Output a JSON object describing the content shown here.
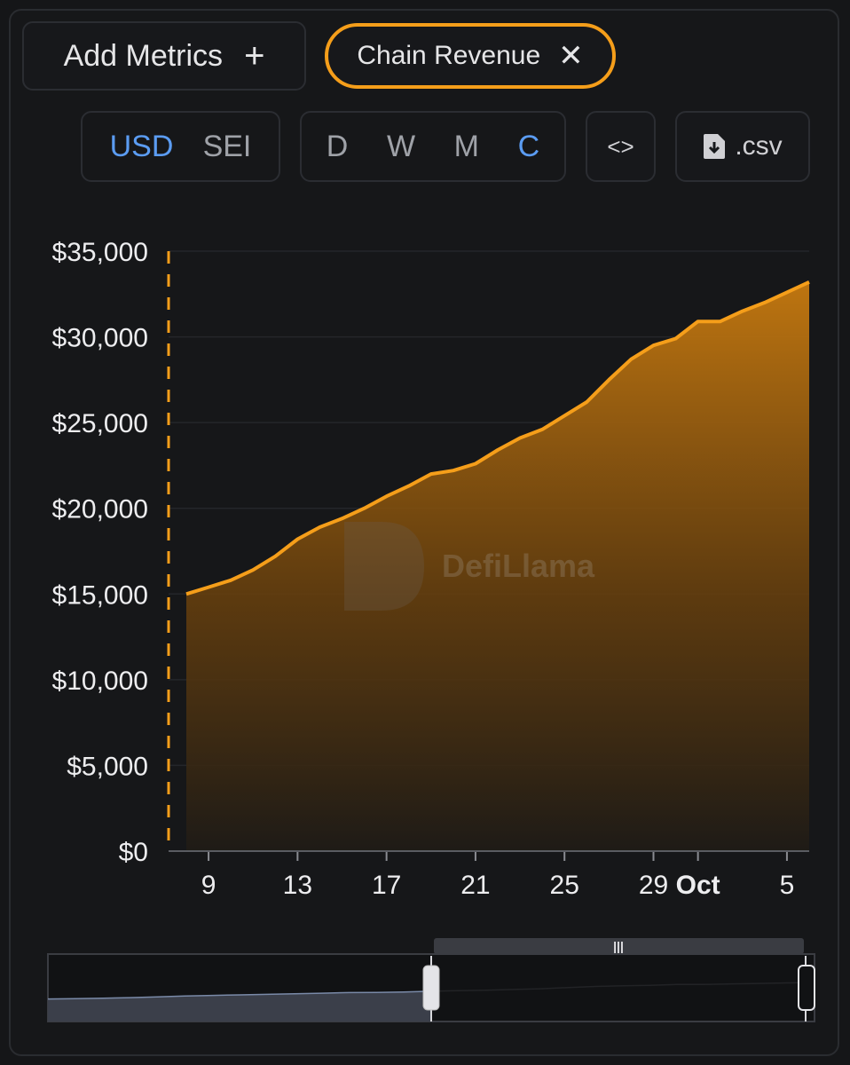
{
  "controls": {
    "add_metrics_label": "Add Metrics",
    "add_icon": "plus-icon",
    "chain_pill_label": "Chain Revenue",
    "remove_icon": "close-icon",
    "currency_options": [
      "USD",
      "SEI"
    ],
    "currency_selected": "USD",
    "period_options": [
      "D",
      "W",
      "M",
      "C"
    ],
    "period_selected": "C",
    "embed_label": "<>",
    "csv_label": ".csv",
    "csv_icon": "file-download-icon"
  },
  "watermark": {
    "text": "DefiLlama"
  },
  "colors": {
    "accent": "#f59e1a",
    "active_toggle": "#5b9cf2",
    "background": "#161719"
  },
  "chart_data": {
    "type": "area",
    "title": "",
    "xlabel": "",
    "ylabel": "",
    "ylim": [
      0,
      35000
    ],
    "y_ticks": [
      "$0",
      "$5,000",
      "$10,000",
      "$15,000",
      "$20,000",
      "$25,000",
      "$30,000",
      "$35,000"
    ],
    "x_ticks": [
      {
        "label": "9",
        "date": "2024-09-09"
      },
      {
        "label": "13",
        "date": "2024-09-13"
      },
      {
        "label": "17",
        "date": "2024-09-17"
      },
      {
        "label": "21",
        "date": "2024-09-21"
      },
      {
        "label": "25",
        "date": "2024-09-25"
      },
      {
        "label": "29",
        "date": "2024-09-29"
      },
      {
        "label": "Oct",
        "date": "2024-10-01",
        "bold": true
      },
      {
        "label": "5",
        "date": "2024-10-05"
      }
    ],
    "grid": true,
    "series": [
      {
        "x": [
          "2024-09-08",
          "2024-09-09",
          "2024-09-10",
          "2024-09-11",
          "2024-09-12",
          "2024-09-13",
          "2024-09-14",
          "2024-09-15",
          "2024-09-16",
          "2024-09-17",
          "2024-09-18",
          "2024-09-19",
          "2024-09-20",
          "2024-09-21",
          "2024-09-22",
          "2024-09-23",
          "2024-09-24",
          "2024-09-25",
          "2024-09-26",
          "2024-09-27",
          "2024-09-28",
          "2024-09-29",
          "2024-09-30",
          "2024-10-01",
          "2024-10-02",
          "2024-10-03",
          "2024-10-04",
          "2024-10-05",
          "2024-10-06"
        ],
        "values": [
          15000,
          15400,
          15800,
          16400,
          17200,
          18200,
          18900,
          19400,
          20000,
          20700,
          21300,
          22000,
          22200,
          22600,
          23400,
          24100,
          24600,
          25400,
          26200,
          27500,
          28700,
          29500,
          29900,
          30900,
          30900,
          31500,
          32000,
          32600,
          33200
        ],
        "color": "#f59e1a"
      }
    ],
    "range_selector": {
      "selected_from": "2024-09-08",
      "selected_to": "2024-10-06"
    }
  }
}
